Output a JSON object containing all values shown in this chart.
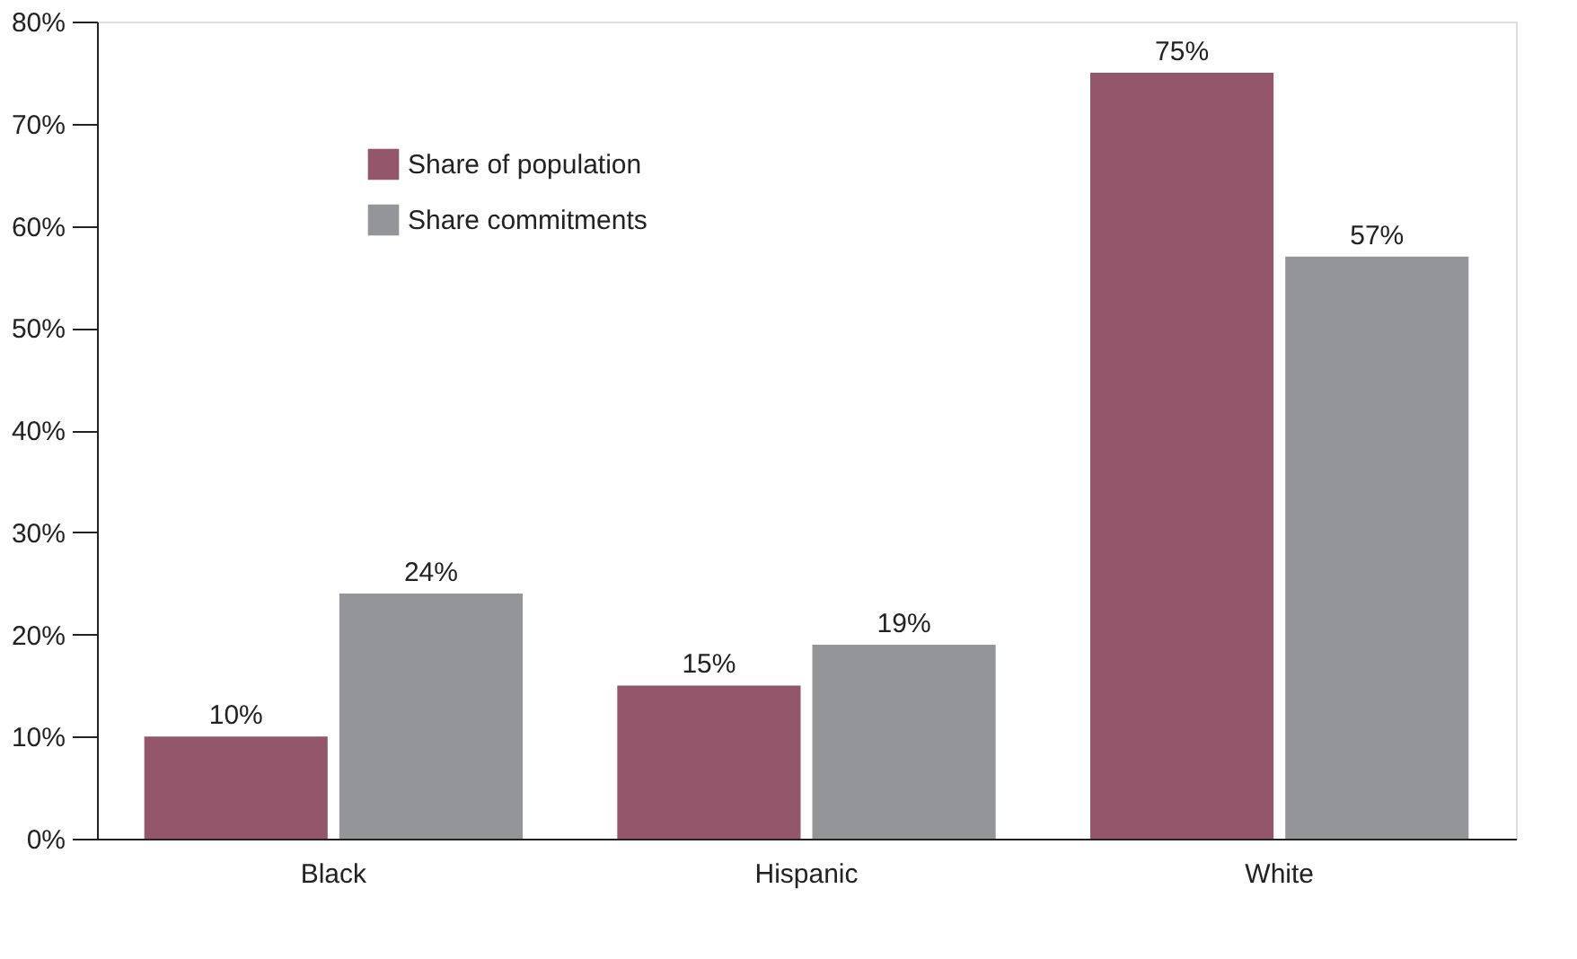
{
  "chart_data": {
    "type": "bar",
    "categories": [
      "Black",
      "Hispanic",
      "White"
    ],
    "series": [
      {
        "name": "Share of population",
        "color": "#93566a",
        "values": [
          10,
          15,
          75
        ],
        "value_labels": [
          "10%",
          "15%",
          "75%"
        ]
      },
      {
        "name": "Share commitments",
        "color": "#939598",
        "values": [
          24,
          19,
          57
        ],
        "value_labels": [
          "24%",
          "19%",
          "57%"
        ]
      }
    ],
    "ylim": [
      0,
      80
    ],
    "yticks": [
      {
        "value": 0,
        "label": "0%"
      },
      {
        "value": 10,
        "label": "10%"
      },
      {
        "value": 20,
        "label": "20%"
      },
      {
        "value": 30,
        "label": "30%"
      },
      {
        "value": 40,
        "label": "40%"
      },
      {
        "value": 50,
        "label": "50%"
      },
      {
        "value": 60,
        "label": "60%"
      },
      {
        "value": 70,
        "label": "70%"
      },
      {
        "value": 80,
        "label": "80%"
      }
    ],
    "grid": false,
    "legend": "top left"
  }
}
